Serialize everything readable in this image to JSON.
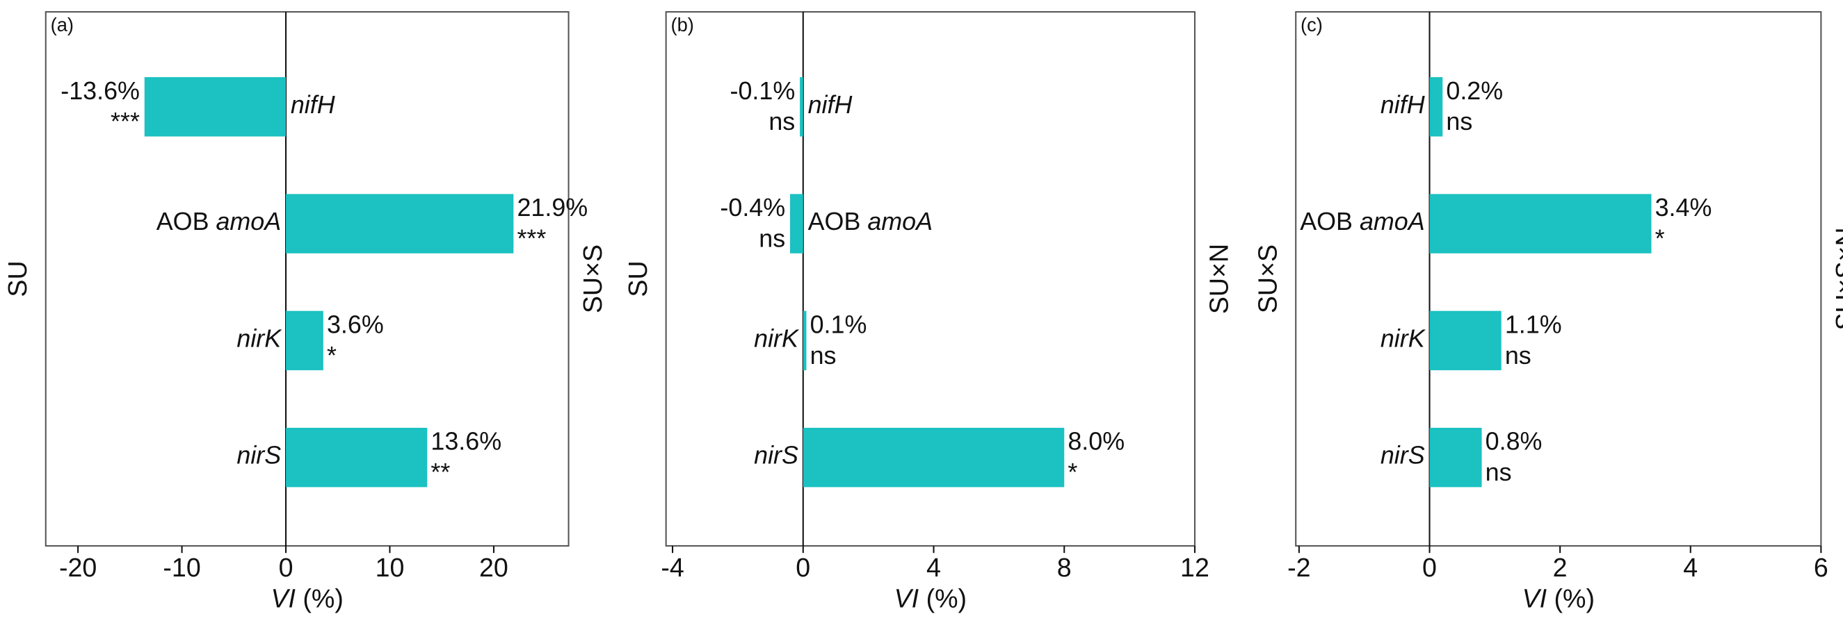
{
  "chart_data": [
    {
      "type": "bar",
      "orientation": "horizontal",
      "label": "(a)",
      "ylabel": "SU",
      "y2label": "SU×S",
      "xlabel": "VI (%)",
      "categories": [
        "nifH",
        "AOB amoA",
        "nirK",
        "nirS"
      ],
      "values": [
        -13.6,
        21.9,
        3.6,
        13.6
      ],
      "value_labels": [
        "-13.6%",
        "21.9%",
        "3.6%",
        "13.6%"
      ],
      "significance": [
        "***",
        "***",
        "*",
        "**"
      ],
      "color": "#1cc1c1",
      "xlim": [
        -23.1,
        27.2
      ],
      "xticks": [
        -20,
        -10,
        0,
        10,
        20
      ]
    },
    {
      "type": "bar",
      "orientation": "horizontal",
      "label": "(b)",
      "ylabel": "SU",
      "y2label": "SU×N",
      "xlabel": "VI (%)",
      "categories": [
        "nifH",
        "AOB amoA",
        "nirK",
        "nirS"
      ],
      "values": [
        -0.1,
        -0.4,
        0.1,
        8.0
      ],
      "value_labels": [
        "-0.1%",
        "-0.4%",
        "0.1%",
        "8.0%"
      ],
      "significance": [
        "ns",
        "ns",
        "ns",
        "*"
      ],
      "color": "#1cc1c1",
      "xlim": [
        -4.2,
        12
      ],
      "xticks": [
        -4,
        0,
        4,
        8,
        12
      ]
    },
    {
      "type": "bar",
      "orientation": "horizontal",
      "label": "(c)",
      "ylabel": "SU×S",
      "y2label": "SU×S×N",
      "xlabel": "VI (%)",
      "categories": [
        "nifH",
        "AOB amoA",
        "nirK",
        "nirS"
      ],
      "values": [
        0.2,
        3.4,
        1.1,
        0.8
      ],
      "value_labels": [
        "0.2%",
        "3.4%",
        "1.1%",
        "0.8%"
      ],
      "significance": [
        "ns",
        "*",
        "ns",
        "ns"
      ],
      "color": "#1cc1c1",
      "xlim": [
        -2.05,
        6
      ],
      "xticks": [
        -2,
        0,
        2,
        4,
        6
      ]
    }
  ]
}
